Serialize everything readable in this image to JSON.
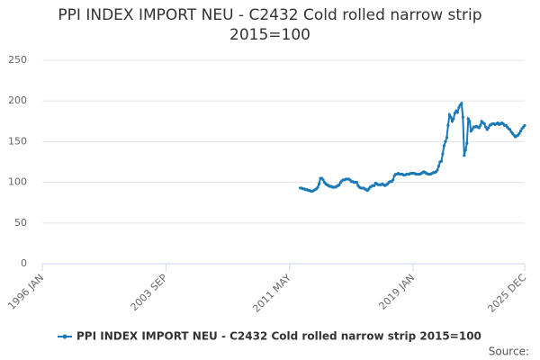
{
  "chart_data": {
    "type": "line",
    "title": "PPI INDEX IMPORT NEU - C2432 Cold rolled narrow strip 2015=100",
    "source": "Source:",
    "legend": "bottom",
    "grid": true,
    "xlim": [
      "1996 JAN",
      "2025 DEC"
    ],
    "xticks": [
      "1996 JAN",
      "2003 SEP",
      "2011 MAY",
      "2019 JAN",
      "2025 DEC"
    ],
    "ylim": [
      0,
      250
    ],
    "yticks": [
      0,
      50,
      100,
      150,
      200,
      250
    ],
    "x": [
      "2012 JAN",
      "2012 FEB",
      "2012 MAR",
      "2012 APR",
      "2012 MAY",
      "2012 JUN",
      "2012 JUL",
      "2012 AUG",
      "2012 SEP",
      "2012 OCT",
      "2012 NOV",
      "2012 DEC",
      "2013 JAN",
      "2013 FEB",
      "2013 MAR",
      "2013 APR",
      "2013 MAY",
      "2013 JUN",
      "2013 JUL",
      "2013 AUG",
      "2013 SEP",
      "2013 OCT",
      "2013 NOV",
      "2013 DEC",
      "2014 JAN",
      "2014 FEB",
      "2014 MAR",
      "2014 APR",
      "2014 MAY",
      "2014 JUN",
      "2014 JUL",
      "2014 AUG",
      "2014 SEP",
      "2014 OCT",
      "2014 NOV",
      "2014 DEC",
      "2015 JAN",
      "2015 FEB",
      "2015 MAR",
      "2015 APR",
      "2015 MAY",
      "2015 JUN",
      "2015 JUL",
      "2015 AUG",
      "2015 SEP",
      "2015 OCT",
      "2015 NOV",
      "2015 DEC",
      "2016 JAN",
      "2016 FEB",
      "2016 MAR",
      "2016 APR",
      "2016 MAY",
      "2016 JUN",
      "2016 JUL",
      "2016 AUG",
      "2016 SEP",
      "2016 OCT",
      "2016 NOV",
      "2016 DEC",
      "2017 JAN",
      "2017 FEB",
      "2017 MAR",
      "2017 APR",
      "2017 MAY",
      "2017 JUN",
      "2017 JUL",
      "2017 AUG",
      "2017 SEP",
      "2017 OCT",
      "2017 NOV",
      "2017 DEC",
      "2018 JAN",
      "2018 FEB",
      "2018 MAR",
      "2018 APR",
      "2018 MAY",
      "2018 JUN",
      "2018 JUL",
      "2018 AUG",
      "2018 SEP",
      "2018 OCT",
      "2018 NOV",
      "2018 DEC",
      "2019 JAN",
      "2019 FEB",
      "2019 MAR",
      "2019 APR",
      "2019 MAY",
      "2019 JUN",
      "2019 JUL",
      "2019 AUG",
      "2019 SEP",
      "2019 OCT",
      "2019 NOV",
      "2019 DEC",
      "2020 JAN",
      "2020 FEB",
      "2020 MAR",
      "2020 APR",
      "2020 MAY",
      "2020 JUN",
      "2020 JUL",
      "2020 AUG",
      "2020 SEP",
      "2020 OCT",
      "2020 NOV",
      "2020 DEC",
      "2021 JAN",
      "2021 FEB",
      "2021 MAR",
      "2021 APR",
      "2021 MAY",
      "2021 JUN",
      "2021 JUL",
      "2021 AUG",
      "2021 SEP",
      "2021 OCT",
      "2021 NOV",
      "2021 DEC",
      "2022 JAN",
      "2022 FEB",
      "2022 MAR",
      "2022 APR",
      "2022 MAY",
      "2022 JUN",
      "2022 JUL",
      "2022 AUG",
      "2022 SEP",
      "2022 OCT",
      "2022 NOV",
      "2022 DEC",
      "2023 JAN",
      "2023 FEB",
      "2023 MAR",
      "2023 APR",
      "2023 MAY",
      "2023 JUN",
      "2023 JUL",
      "2023 AUG",
      "2023 SEP",
      "2023 OCT",
      "2023 NOV",
      "2023 DEC",
      "2024 JAN",
      "2024 FEB",
      "2024 MAR",
      "2024 APR",
      "2024 MAY",
      "2024 JUN",
      "2024 JUL",
      "2024 AUG",
      "2024 SEP",
      "2024 OCT",
      "2024 NOV",
      "2024 DEC",
      "2025 JAN",
      "2025 FEB",
      "2025 MAR",
      "2025 APR",
      "2025 MAY",
      "2025 JUN",
      "2025 JUL",
      "2025 AUG",
      "2025 SEP",
      "2025 OCT",
      "2025 NOV",
      "2025 DEC"
    ],
    "series": [
      {
        "name": "PPI INDEX IMPORT NEU - C2432 Cold rolled narrow strip 2015=100",
        "color": "#1a7ab8",
        "values": [
          93,
          93,
          92,
          92,
          91,
          91,
          90,
          90,
          89,
          89,
          90,
          91,
          92,
          94,
          98,
          105,
          105,
          103,
          100,
          98,
          97,
          96,
          95,
          95,
          94,
          94,
          94,
          95,
          96,
          97,
          100,
          102,
          103,
          103,
          104,
          104,
          104,
          103,
          101,
          101,
          100,
          100,
          100,
          96,
          94,
          93,
          93,
          93,
          92,
          91,
          90,
          92,
          94,
          95,
          96,
          96,
          99,
          98,
          97,
          97,
          97,
          98,
          97,
          96,
          97,
          98,
          100,
          101,
          101,
          103,
          108,
          110,
          110,
          111,
          110,
          110,
          110,
          109,
          109,
          110,
          110,
          110,
          111,
          111,
          111,
          111,
          110,
          110,
          110,
          110,
          111,
          112,
          113,
          112,
          111,
          110,
          110,
          110,
          111,
          112,
          112,
          113,
          115,
          120,
          125,
          126,
          135,
          145,
          150,
          155,
          170,
          183,
          180,
          175,
          178,
          185,
          188,
          186,
          192,
          195,
          197,
          180,
          133,
          140,
          148,
          178,
          175,
          163,
          165,
          168,
          168,
          169,
          168,
          167,
          170,
          175,
          173,
          172,
          168,
          165,
          167,
          170,
          171,
          172,
          172,
          171,
          172,
          173,
          171,
          172,
          173,
          172,
          170,
          170,
          168,
          166,
          165,
          162,
          160,
          158,
          156,
          157,
          158,
          160,
          163,
          166,
          168,
          170
        ]
      }
    ]
  }
}
